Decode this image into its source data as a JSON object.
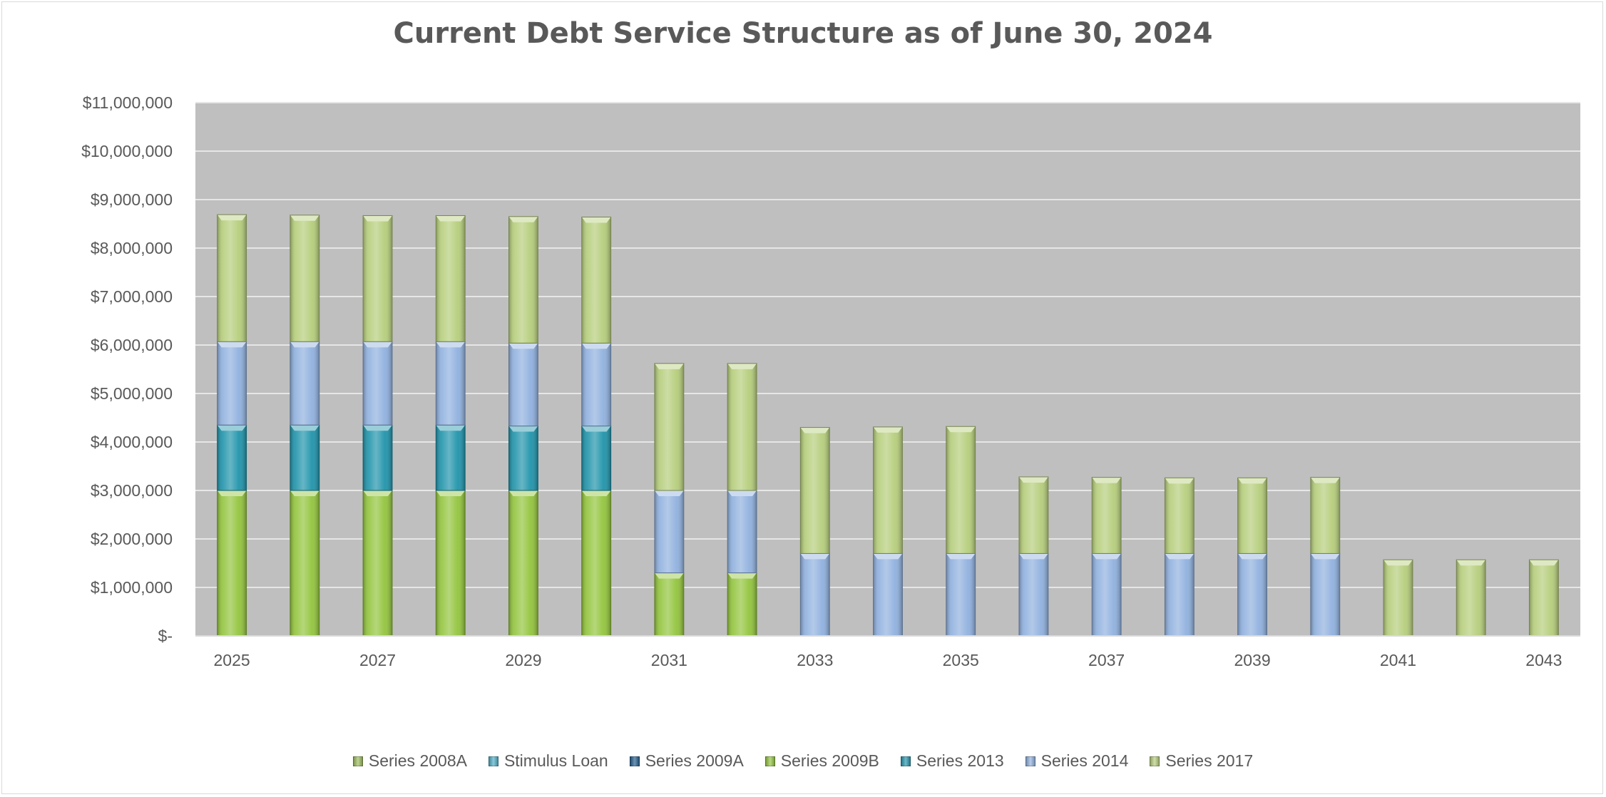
{
  "chart_data": {
    "type": "bar",
    "stacked": true,
    "title": "Current Debt Service Structure as of June 30, 2024",
    "xlabel": "",
    "ylabel": "",
    "ylim": [
      0,
      11000000
    ],
    "y_ticks": [
      0,
      1000000,
      2000000,
      3000000,
      4000000,
      5000000,
      6000000,
      7000000,
      8000000,
      9000000,
      10000000,
      11000000
    ],
    "y_tick_labels": [
      "$-",
      "$1,000,000",
      "$2,000,000",
      "$3,000,000",
      "$4,000,000",
      "$5,000,000",
      "$6,000,000",
      "$7,000,000",
      "$8,000,000",
      "$9,000,000",
      "$10,000,000",
      "$11,000,000"
    ],
    "categories": [
      "2025",
      "2026",
      "2027",
      "2028",
      "2029",
      "2030",
      "2031",
      "2032",
      "2033",
      "2034",
      "2035",
      "2036",
      "2037",
      "2038",
      "2039",
      "2040",
      "2041",
      "2042",
      "2043"
    ],
    "x_tick_labels": [
      "2025",
      "",
      "2027",
      "",
      "2029",
      "",
      "2031",
      "",
      "2033",
      "",
      "2035",
      "",
      "2037",
      "",
      "2039",
      "",
      "2041",
      "",
      "2043"
    ],
    "grid": true,
    "legend_position": "bottom",
    "plot_background": "#bfbfbf",
    "series": [
      {
        "name": "Series 2008A",
        "color": "#9bbb59",
        "values": [
          0,
          0,
          0,
          0,
          0,
          0,
          0,
          0,
          0,
          0,
          0,
          0,
          0,
          0,
          0,
          0,
          0,
          0,
          0
        ]
      },
      {
        "name": "Stimulus Loan",
        "color": "#4bacc6",
        "values": [
          0,
          0,
          0,
          0,
          0,
          0,
          0,
          0,
          0,
          0,
          0,
          0,
          0,
          0,
          0,
          0,
          0,
          0,
          0
        ]
      },
      {
        "name": "Series 2009A",
        "color": "#1f5a8c",
        "values": [
          0,
          0,
          0,
          0,
          0,
          0,
          0,
          0,
          0,
          0,
          0,
          0,
          0,
          0,
          0,
          0,
          0,
          0,
          0
        ]
      },
      {
        "name": "Series 2009B",
        "color": "#92c43c",
        "values": [
          3000000,
          3000000,
          3000000,
          3000000,
          3000000,
          3000000,
          1300000,
          1300000,
          0,
          0,
          0,
          0,
          0,
          0,
          0,
          0,
          0,
          0,
          0
        ]
      },
      {
        "name": "Series 2013",
        "color": "#1f93aa",
        "values": [
          1350000,
          1350000,
          1350000,
          1350000,
          1330000,
          1330000,
          0,
          0,
          0,
          0,
          0,
          0,
          0,
          0,
          0,
          0,
          0,
          0,
          0
        ]
      },
      {
        "name": "Series 2014",
        "color": "#8fb0de",
        "values": [
          1720000,
          1720000,
          1720000,
          1720000,
          1710000,
          1710000,
          1700000,
          1700000,
          1700000,
          1700000,
          1700000,
          1700000,
          1700000,
          1700000,
          1700000,
          1700000,
          0,
          0,
          0
        ]
      },
      {
        "name": "Series 2017",
        "color": "#b5cd7a",
        "values": [
          2620000,
          2610000,
          2600000,
          2600000,
          2610000,
          2600000,
          2620000,
          2620000,
          2600000,
          2610000,
          2620000,
          1580000,
          1570000,
          1560000,
          1560000,
          1570000,
          1570000,
          1570000,
          1570000
        ]
      }
    ]
  }
}
